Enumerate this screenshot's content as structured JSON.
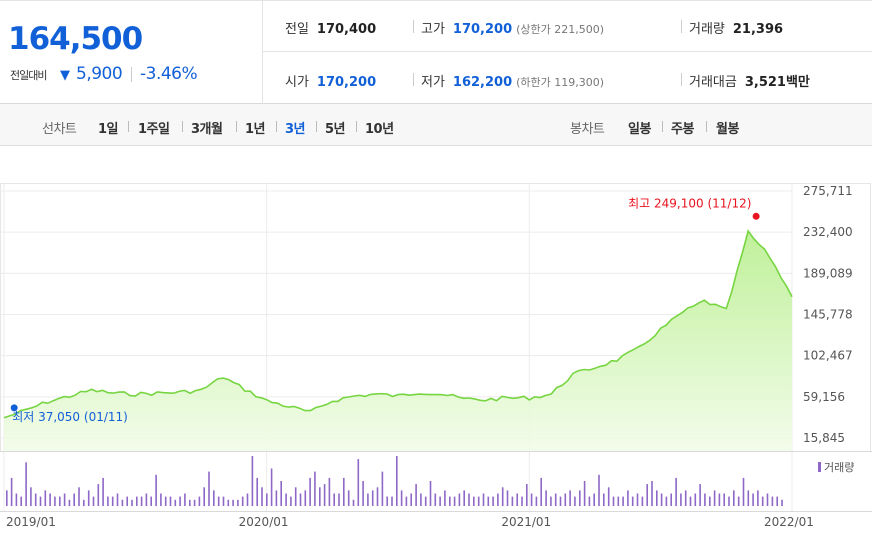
{
  "quote": {
    "price": "164,500",
    "change_label": "전일대비",
    "change_symbol": "▼",
    "change_value": "5,900",
    "change_pct": "-3.46%",
    "prev_close_label": "전일",
    "prev_close": "170,400",
    "high_label": "고가",
    "high": "170,200",
    "upper_limit": "(상한가 221,500)",
    "volume_label": "거래량",
    "volume": "21,396",
    "open_label": "시가",
    "open": "170,200",
    "low_label": "저가",
    "low": "162,200",
    "lower_limit": "(하한가 119,300)",
    "amount_label": "거래대금",
    "amount": "3,521",
    "amount_unit": "백만"
  },
  "period_bar": {
    "line_label": "선차트",
    "line_periods": [
      "1일",
      "1주일",
      "3개월",
      "1년",
      "3년",
      "5년",
      "10년"
    ],
    "active_period": "3년",
    "candle_label": "봉차트",
    "candle_periods": [
      "일봉",
      "주봉",
      "월봉"
    ]
  },
  "colors": {
    "blue": "#1160d8",
    "red": "#e8141f",
    "line": "#77d542",
    "volume": "#8e67c7"
  },
  "chart_data": {
    "type": "area",
    "x_ticks": [
      "2019/01",
      "2020/01",
      "2021/01",
      "2022/01"
    ],
    "y_ticks": [
      275711,
      232400,
      189089,
      145778,
      102467,
      59156,
      15845
    ],
    "y_tick_labels": [
      "275,711",
      "232,400",
      "189,089",
      "145,778",
      "102,467",
      "59,156",
      "15,845"
    ],
    "ylim": [
      15845,
      275711
    ],
    "xlim": [
      "2019/01",
      "2022/01"
    ],
    "grid": true,
    "max_annotation": {
      "text": "최고 249,100 (11/12)",
      "value": 249100,
      "date": "2021/11/12"
    },
    "min_annotation": {
      "text": "최저 37,050 (01/11)",
      "value": 37050,
      "date": "2019/01/11"
    },
    "series": [
      {
        "kind": "price",
        "x": [
          "2019/01",
          "2019/02",
          "2019/03",
          "2019/04",
          "2019/05",
          "2019/06",
          "2019/07",
          "2019/08",
          "2019/09",
          "2019/10",
          "2019/11",
          "2019/12",
          "2020/01",
          "2020/02",
          "2020/03",
          "2020/04",
          "2020/05",
          "2020/06",
          "2020/07",
          "2020/08",
          "2020/09",
          "2020/10",
          "2020/11",
          "2020/12",
          "2021/01",
          "2021/02",
          "2021/03",
          "2021/04",
          "2021/05",
          "2021/06",
          "2021/07",
          "2021/08",
          "2021/09",
          "2021/10",
          "2021/11",
          "2021/12",
          "2022/01"
        ],
        "values": [
          37050,
          45000,
          54000,
          60000,
          66000,
          63000,
          62000,
          63000,
          64000,
          66000,
          80000,
          67000,
          55000,
          49000,
          43000,
          55000,
          60000,
          62000,
          60000,
          64000,
          62000,
          57000,
          56000,
          58000,
          58000,
          62000,
          83000,
          90000,
          98000,
          110000,
          130000,
          148000,
          160000,
          150000,
          232000,
          206000,
          164500
        ]
      },
      {
        "kind": "volume",
        "name": "거래량",
        "values": [
          5,
          9,
          4,
          3,
          14,
          6,
          4,
          3,
          5,
          4,
          3,
          3,
          4,
          2,
          4,
          6,
          2,
          5,
          3,
          7,
          9,
          3,
          3,
          4,
          2,
          3,
          2,
          3,
          3,
          4,
          3,
          10,
          4,
          3,
          3,
          2,
          3,
          4,
          2,
          2,
          3,
          6,
          11,
          5,
          3,
          3,
          2,
          2,
          2,
          3,
          4,
          16,
          9,
          6,
          4,
          12,
          5,
          8,
          4,
          3,
          6,
          4,
          5,
          9,
          11,
          6,
          7,
          9,
          4,
          4,
          9,
          5,
          2,
          15,
          8,
          4,
          5,
          6,
          11,
          3,
          3,
          16,
          5,
          3,
          4,
          7,
          4,
          3,
          8,
          4,
          3,
          5,
          3,
          3,
          4,
          5,
          4,
          3,
          3,
          4,
          3,
          3,
          4,
          6,
          5,
          3,
          4,
          3,
          7,
          4,
          3,
          9,
          5,
          3,
          4,
          3,
          4,
          5,
          3,
          5,
          8,
          3,
          4,
          10,
          4,
          6,
          3,
          3,
          3,
          5,
          3,
          4,
          3,
          7,
          8,
          5,
          4,
          3,
          4,
          9,
          4,
          5,
          3,
          4,
          7,
          4,
          3,
          5,
          4,
          4,
          3,
          5,
          3,
          9,
          5,
          4,
          5,
          3,
          4,
          3,
          3,
          2
        ]
      }
    ]
  }
}
